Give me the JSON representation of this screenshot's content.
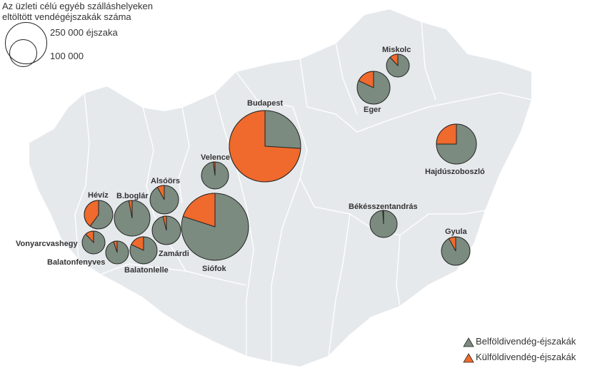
{
  "size_legend": {
    "title_line1": "Az üzleti célú egyéb szálláshelyeken",
    "title_line2": "eltöltött vendégéjszakák száma",
    "large_label": "250 000 éjszaka",
    "small_label": "100 000"
  },
  "legend": {
    "domestic_label": "Belföldivendég-éjszakák",
    "foreign_label": "Külföldivendég-éjszakák"
  },
  "colors": {
    "domestic": "#7b8b7f",
    "foreign": "#ef6a2c",
    "land": "#e6e9ec",
    "border": "#ffffff"
  },
  "locations": [
    {
      "name": "Budapest",
      "foreign_share": 0.74
    },
    {
      "name": "Siófok",
      "foreign_share": 0.2
    },
    {
      "name": "Eger",
      "foreign_share": 0.18
    },
    {
      "name": "Miskolc",
      "foreign_share": 0.12
    },
    {
      "name": "Hajdúszoboszló",
      "foreign_share": 0.25
    },
    {
      "name": "Velence",
      "foreign_share": 0.02
    },
    {
      "name": "Hévíz",
      "foreign_share": 0.4
    },
    {
      "name": "B.boglár",
      "foreign_share": 0.03
    },
    {
      "name": "Alsóörs",
      "foreign_share": 0.08
    },
    {
      "name": "Zamárdi",
      "foreign_share": 0.04
    },
    {
      "name": "Vonyarcvashegy",
      "foreign_share": 0.12
    },
    {
      "name": "Balatonfenyves",
      "foreign_share": 0.05
    },
    {
      "name": "Balatonlelle",
      "foreign_share": 0.18
    },
    {
      "name": "Békésszentandrás",
      "foreign_share": 0.01
    },
    {
      "name": "Gyula",
      "foreign_share": 0.08
    }
  ]
}
